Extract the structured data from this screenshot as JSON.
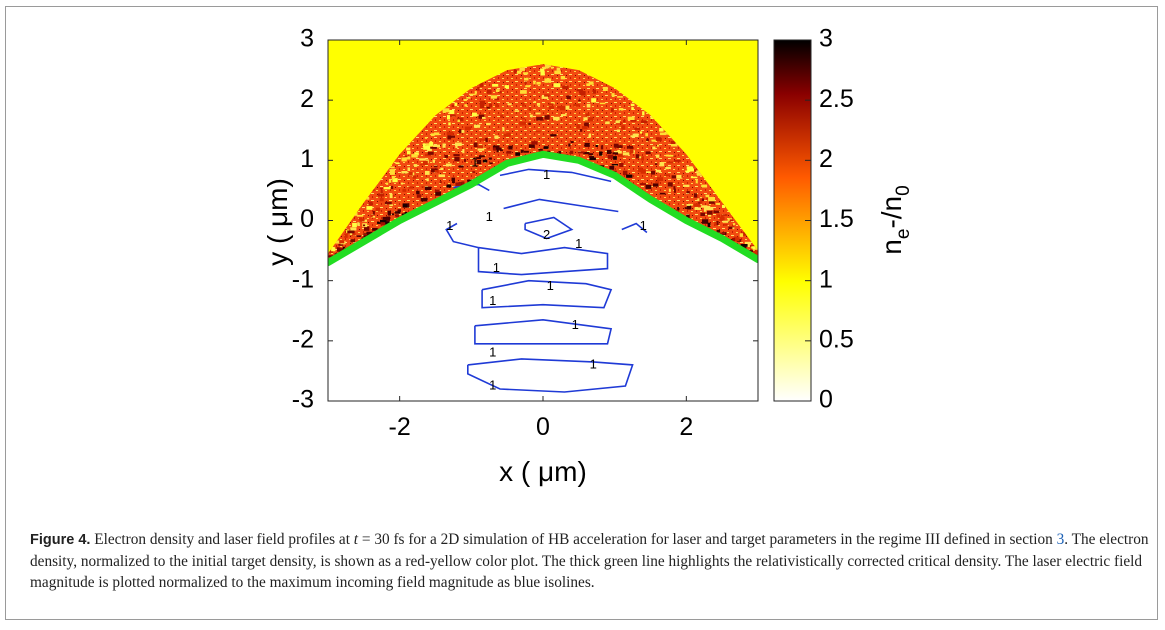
{
  "figure": {
    "label": "Figure 4.",
    "caption_part1": " Electron density and laser field profiles at ",
    "caption_math_t": "t",
    "caption_part2": " = 30 fs for a 2D simulation of HB acceleration for laser and target parameters in the regime III defined in section ",
    "caption_ref": "3",
    "caption_part3": ". The electron density, normalized to the initial target density, is shown as a red-yellow color plot. The thick green line highlights the relativistically corrected critical density. The laser electric field magnitude is plotted normalized to the maximum incoming field magnitude as blue isolines."
  },
  "chart_data": {
    "type": "heatmap",
    "title": "",
    "xlabel": "x ( μm)",
    "ylabel": "y ( μm)",
    "xlim": [
      -3,
      3
    ],
    "ylim": [
      -3,
      3
    ],
    "x_ticks": [
      "-2",
      "0",
      "2"
    ],
    "y_ticks": [
      "3",
      "2",
      "1",
      "0",
      "-1",
      "-2",
      "-3"
    ],
    "colorbar": {
      "label": "n_e-/n_0",
      "range": [
        0,
        3
      ],
      "ticks": [
        "3",
        "2.5",
        "2",
        "1.5",
        "1",
        "0.5",
        "0"
      ],
      "colormap": "hot (white-yellow-red-black)"
    },
    "background_value": 1,
    "series": [
      {
        "name": "critical density",
        "color": "#22dd22",
        "x": [
          -3,
          -2.5,
          -2,
          -1.5,
          -1,
          -0.5,
          0,
          0.5,
          1,
          1.5,
          2,
          2.5,
          3
        ],
        "y": [
          -0.7,
          -0.35,
          0.0,
          0.3,
          0.6,
          0.95,
          1.1,
          1.0,
          0.75,
          0.35,
          0.0,
          -0.3,
          -0.65
        ]
      },
      {
        "name": "shell outer edge",
        "x": [
          -3,
          -2.5,
          -2,
          -1.5,
          -1,
          -0.5,
          0,
          0.5,
          1,
          1.5,
          2,
          2.5,
          3
        ],
        "y": [
          -0.55,
          0.3,
          1.1,
          1.75,
          2.2,
          2.5,
          2.6,
          2.5,
          2.2,
          1.75,
          1.1,
          0.3,
          -0.5
        ]
      }
    ],
    "isoline_labels": [
      {
        "x": -0.95,
        "y": 0.95,
        "text": "1"
      },
      {
        "x": 0.05,
        "y": 0.75,
        "text": "1"
      },
      {
        "x": -0.75,
        "y": 0.05,
        "text": "1"
      },
      {
        "x": -1.3,
        "y": -0.1,
        "text": "1"
      },
      {
        "x": 0.05,
        "y": -0.25,
        "text": "2"
      },
      {
        "x": 0.5,
        "y": -0.4,
        "text": "1"
      },
      {
        "x": 1.4,
        "y": -0.1,
        "text": "1"
      },
      {
        "x": -0.65,
        "y": -0.8,
        "text": "1"
      },
      {
        "x": 0.1,
        "y": -1.1,
        "text": "1"
      },
      {
        "x": -0.7,
        "y": -1.35,
        "text": "1"
      },
      {
        "x": 0.45,
        "y": -1.75,
        "text": "1"
      },
      {
        "x": -0.7,
        "y": -2.2,
        "text": "1"
      },
      {
        "x": 0.7,
        "y": -2.4,
        "text": "1"
      },
      {
        "x": -0.7,
        "y": -2.75,
        "text": "1"
      }
    ]
  }
}
